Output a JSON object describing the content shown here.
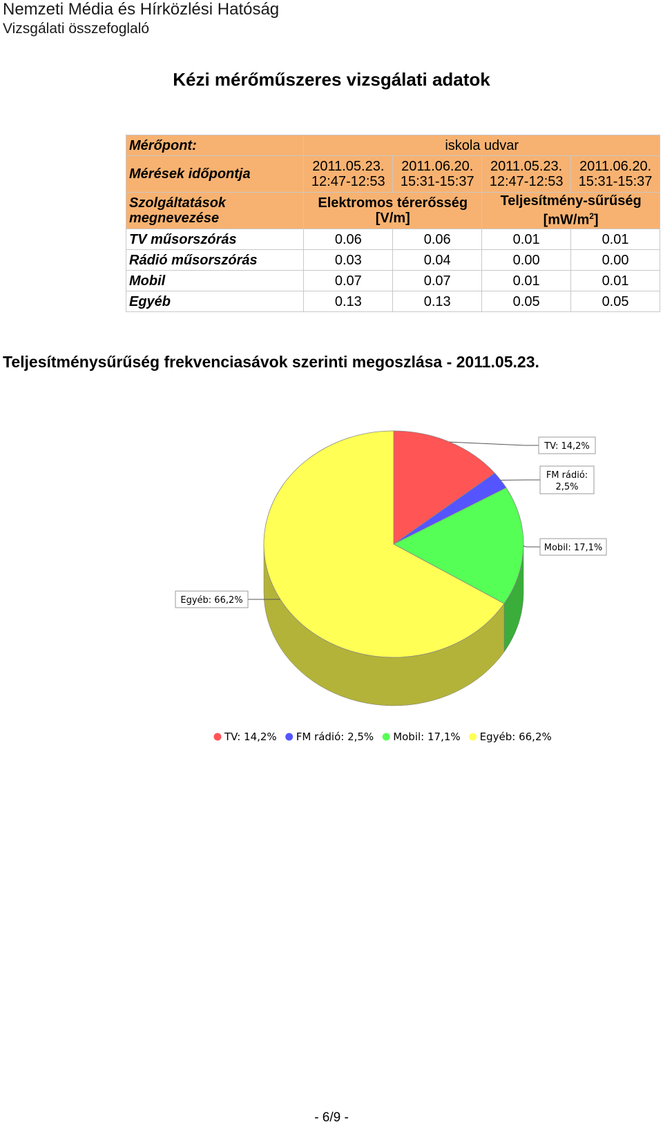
{
  "header": {
    "line1": "Nemzeti Média és Hírközlési Hatóság",
    "line2": "Vizsgálati összefoglaló"
  },
  "title": "Kézi mérőműszeres vizsgálati adatok",
  "table": {
    "row1_label": "Mérőpont:",
    "location": "iskola udvar",
    "row2_label": "Mérések időpontja",
    "times": [
      [
        "2011.05.23.",
        "12:47-12:53"
      ],
      [
        "2011.06.20.",
        "15:31-15:37"
      ],
      [
        "2011.05.23.",
        "12:47-12:53"
      ],
      [
        "2011.06.20.",
        "15:31-15:37"
      ]
    ],
    "row3_label": [
      "Szolgáltatások",
      "megnevezése"
    ],
    "ef_label": [
      "Elektromos térerősség",
      "[V/m]"
    ],
    "pd_label": [
      "Teljesítmény-sűrűség",
      "[mW/m",
      "2",
      "]"
    ],
    "rows": [
      {
        "name": "TV műsorszórás",
        "values": [
          "0.06",
          "0.06",
          "0.01",
          "0.01"
        ]
      },
      {
        "name": "Rádió műsorszórás",
        "values": [
          "0.03",
          "0.04",
          "0.00",
          "0.00"
        ]
      },
      {
        "name": "Mobil",
        "values": [
          "0.07",
          "0.07",
          "0.01",
          "0.01"
        ]
      },
      {
        "name": "Egyéb",
        "values": [
          "0.13",
          "0.13",
          "0.05",
          "0.05"
        ]
      }
    ]
  },
  "section_title": "Teljesítménysűrűség frekvenciasávok szerinti megoszlása - 2011.05.23.",
  "chart_data": {
    "type": "pie",
    "three_d": true,
    "categories": [
      "TV",
      "FM rádió",
      "Mobil",
      "Egyéb"
    ],
    "values": [
      14.2,
      2.5,
      17.1,
      66.2
    ],
    "colors": [
      "#ff5555",
      "#5555ff",
      "#55ff55",
      "#ffff55"
    ],
    "side_colors": [
      "#b33a3a",
      "#3a3ab3",
      "#3aad3a",
      "#b3b33a"
    ],
    "callout_labels": [
      "TV: 14,2%",
      "FM rádió:",
      "2,5%",
      "Mobil: 17,1%",
      "Egyéb: 66,2%"
    ],
    "legend": [
      "TV: 14,2%",
      "FM rádió: 2,5%",
      "Mobil: 17,1%",
      "Egyéb: 66,2%"
    ],
    "legend_position": "bottom"
  },
  "footer": "- 6/9 -"
}
